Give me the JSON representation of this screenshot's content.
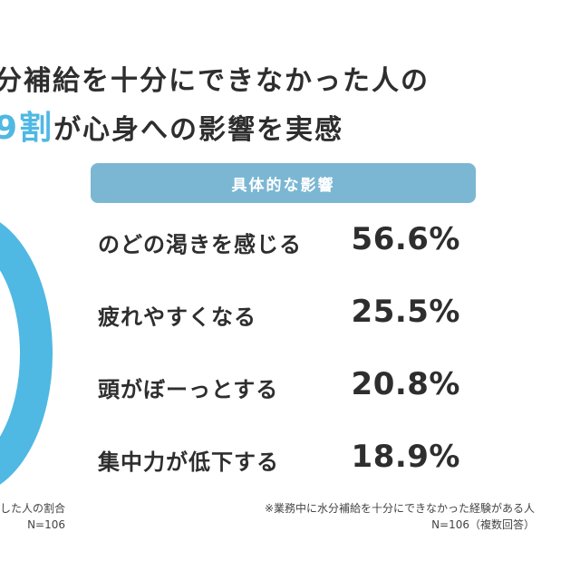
{
  "headline": {
    "line1": "分補給を十分にできなかった人の",
    "line2_accent": "9割",
    "line2_rest": "が心身への影響を実感"
  },
  "colors": {
    "accent": "#4fb8e3",
    "panel_header": "#7bb7d3",
    "text": "#2e2e2e"
  },
  "chart_data": {
    "type": "table",
    "title": "具体的な影響",
    "categories": [
      "のどの渇きを感じる",
      "疲れやすくなる",
      "頭がぼーっとする",
      "集中力が低下する"
    ],
    "values": [
      56.6,
      25.5,
      20.8,
      18.9
    ],
    "value_labels": [
      "56.6%",
      "25.5%",
      "20.8%",
      "18.9%"
    ]
  },
  "notes": {
    "left_line1": "した人の割合",
    "left_line2": "N=106",
    "right_line1": "※業務中に水分補給を十分にできなかった経験がある人",
    "right_line2": "N=106（複数回答）"
  }
}
